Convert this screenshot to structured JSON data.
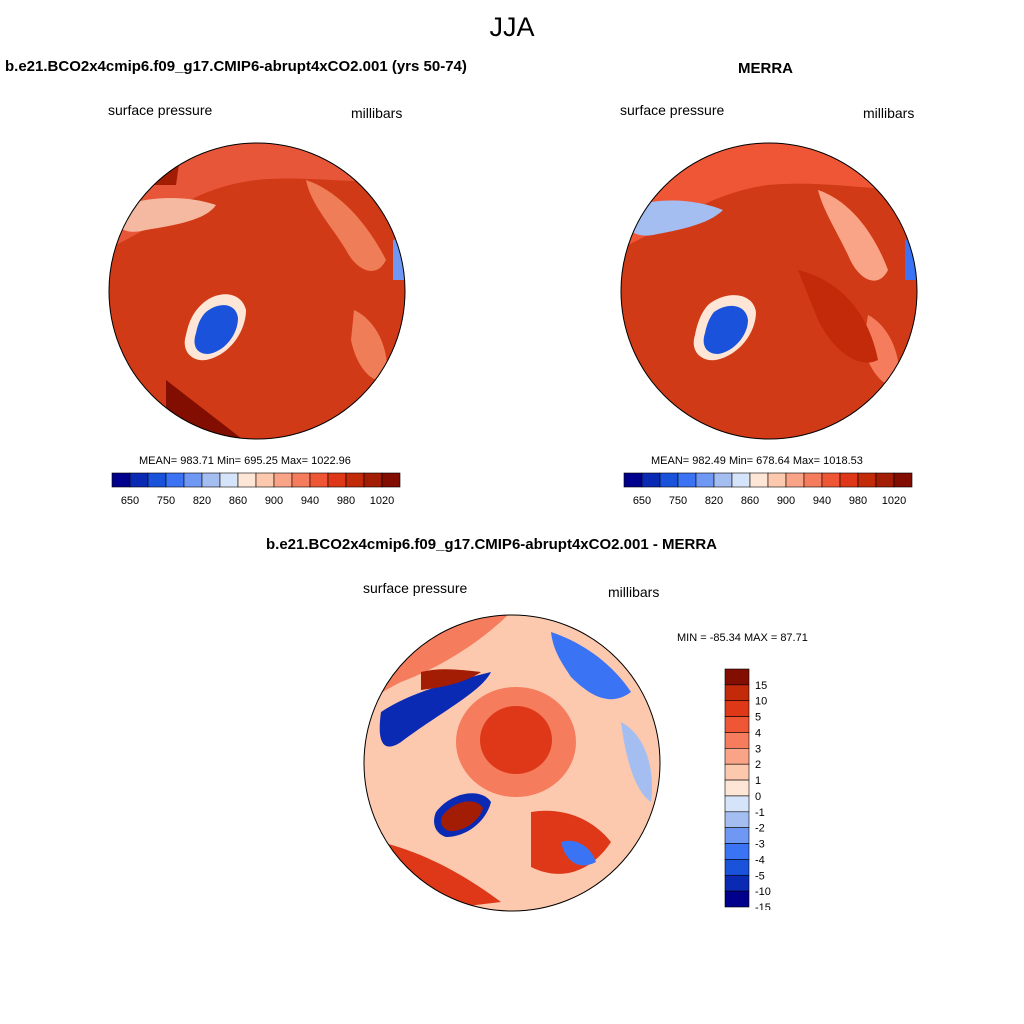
{
  "title": "JJA",
  "colors": {
    "abs_scale": [
      "#00008c",
      "#0a2ab4",
      "#1a52dc",
      "#3a74f4",
      "#6e98f4",
      "#a4bef2",
      "#d6e4fa",
      "#fde6d6",
      "#fcc8ae",
      "#f9a486",
      "#f57c5c",
      "#ef5636",
      "#de3818",
      "#c22a0a",
      "#a31c04",
      "#820e02"
    ],
    "diff_scale": [
      "#00008c",
      "#0a2ab4",
      "#1a52dc",
      "#3a74f4",
      "#6e98f4",
      "#a4bef2",
      "#d6e4fa",
      "#fde6d6",
      "#fcc8ae",
      "#f9a486",
      "#f57c5c",
      "#ef5636",
      "#de3818",
      "#c22a0a",
      "#820e02"
    ]
  },
  "panels": {
    "model": {
      "title": "b.e21.BCO2x4cmip6.f09_g17.CMIP6-abrupt4xCO2.001 (yrs 50-74)",
      "variable": "surface pressure",
      "units": "millibars",
      "stats": "MEAN= 983.71  Min= 695.25  Max= 1022.96"
    },
    "obs": {
      "title": "MERRA",
      "variable": "surface pressure",
      "units": "millibars",
      "stats": "MEAN= 982.49  Min= 678.64  Max= 1018.53"
    },
    "diff": {
      "title": "b.e21.BCO2x4cmip6.f09_g17.CMIP6-abrupt4xCO2.001 - MERRA",
      "variable": "surface pressure",
      "units": "millibars",
      "stats": "MIN = -85.34 MAX =  87.71"
    }
  },
  "colorbars": {
    "abs_labels": [
      "650",
      "750",
      "820",
      "860",
      "900",
      "940",
      "980",
      "1020"
    ],
    "diff_labels": [
      "15",
      "10",
      "5",
      "4",
      "3",
      "2",
      "1",
      "0",
      "-1",
      "-2",
      "-3",
      "-4",
      "-5",
      "-10",
      "-15"
    ]
  }
}
